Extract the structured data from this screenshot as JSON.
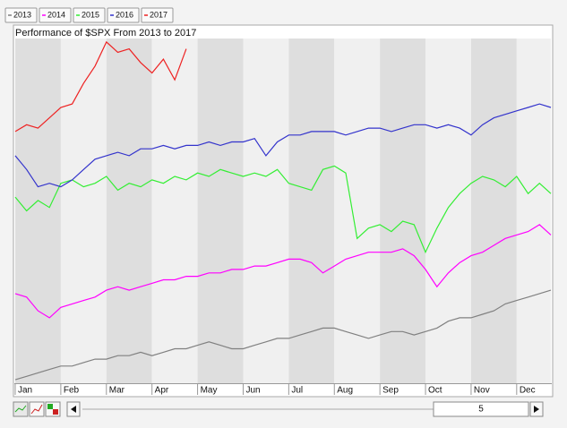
{
  "chart_data": {
    "type": "line",
    "title": "Performance of $SPX From 2013 to 2017",
    "x": [
      0,
      1,
      2,
      3,
      4,
      5,
      6,
      7,
      8,
      9,
      10,
      11,
      12,
      13,
      14,
      15,
      16,
      17,
      18,
      19,
      20,
      21,
      22,
      23,
      24,
      25,
      26,
      27,
      28,
      29,
      30,
      31,
      32,
      33,
      34,
      35,
      36,
      37,
      38,
      39,
      40,
      41,
      42,
      43,
      44,
      45,
      46,
      47
    ],
    "xlim": [
      0,
      47
    ],
    "xticks": [
      {
        "value": 0,
        "label": "Jan"
      },
      {
        "value": 4,
        "label": "Feb"
      },
      {
        "value": 8,
        "label": "Mar"
      },
      {
        "value": 12,
        "label": "Apr"
      },
      {
        "value": 16,
        "label": "May"
      },
      {
        "value": 20,
        "label": "Jun"
      },
      {
        "value": 24,
        "label": "Jul"
      },
      {
        "value": 28,
        "label": "Aug"
      },
      {
        "value": 32,
        "label": "Sep"
      },
      {
        "value": 36,
        "label": "Oct"
      },
      {
        "value": 40,
        "label": "Nov"
      },
      {
        "value": 44,
        "label": "Dec"
      }
    ],
    "ylim": [
      0,
      100
    ],
    "series": [
      {
        "name": "2013",
        "color": "#808080",
        "values": [
          1,
          2,
          3,
          4,
          5,
          5,
          6,
          7,
          7,
          8,
          8,
          9,
          8,
          9,
          10,
          10,
          11,
          12,
          11,
          10,
          10,
          11,
          12,
          13,
          13,
          14,
          15,
          16,
          16,
          15,
          14,
          13,
          14,
          15,
          15,
          14,
          15,
          16,
          18,
          19,
          19,
          20,
          21,
          23,
          24,
          25,
          26,
          27
        ]
      },
      {
        "name": "2014",
        "color": "#ff00ff",
        "values": [
          26,
          25,
          21,
          19,
          22,
          23,
          24,
          25,
          27,
          28,
          27,
          28,
          29,
          30,
          30,
          31,
          31,
          32,
          32,
          33,
          33,
          34,
          34,
          35,
          36,
          36,
          35,
          32,
          34,
          36,
          37,
          38,
          38,
          38,
          39,
          37,
          33,
          28,
          32,
          35,
          37,
          38,
          40,
          42,
          43,
          44,
          46,
          43
        ]
      },
      {
        "name": "2015",
        "color": "#33ee33",
        "values": [
          54,
          50,
          53,
          51,
          58,
          59,
          57,
          58,
          60,
          56,
          58,
          57,
          59,
          58,
          60,
          59,
          61,
          60,
          62,
          61,
          60,
          61,
          60,
          62,
          58,
          57,
          56,
          62,
          63,
          61,
          42,
          45,
          46,
          44,
          47,
          46,
          38,
          45,
          51,
          55,
          58,
          60,
          59,
          57,
          60,
          55,
          58,
          55
        ]
      },
      {
        "name": "2016",
        "color": "#3333cc",
        "values": [
          66,
          62,
          57,
          58,
          57,
          59,
          62,
          65,
          66,
          67,
          66,
          68,
          68,
          69,
          68,
          69,
          69,
          70,
          69,
          70,
          70,
          71,
          66,
          70,
          72,
          72,
          73,
          73,
          73,
          72,
          73,
          74,
          74,
          73,
          74,
          75,
          75,
          74,
          75,
          74,
          72,
          75,
          77,
          78,
          79,
          80,
          81,
          80
        ]
      },
      {
        "name": "2017",
        "color": "#ee2222",
        "values": [
          73,
          75,
          74,
          77,
          80,
          81,
          87,
          92,
          99,
          96,
          97,
          93,
          90,
          94,
          88,
          97,
          null,
          null,
          null,
          null,
          null,
          null,
          null,
          null,
          null,
          null,
          null,
          null,
          null,
          null,
          null,
          null,
          null,
          null,
          null,
          null,
          null,
          null,
          null,
          null,
          null,
          null,
          null,
          null,
          null,
          null,
          null,
          null
        ]
      }
    ]
  },
  "toolbar": {
    "zoom": "5"
  }
}
